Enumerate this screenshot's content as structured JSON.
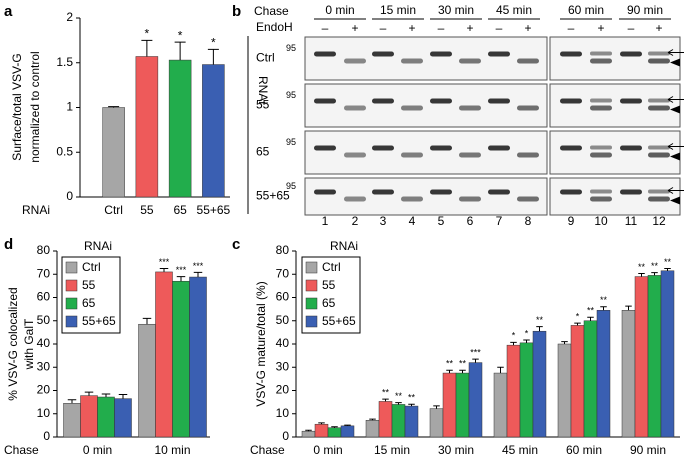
{
  "chart_data": [
    {
      "type": "bar",
      "label": "a",
      "y_label": [
        "Surface/total VSV-G",
        "normalized to control"
      ],
      "category_label": "RNAi",
      "categories": [
        "Ctrl",
        "55",
        "65",
        "55+65"
      ],
      "values": [
        1,
        1.57,
        1.53,
        1.48
      ],
      "errors": [
        0.01,
        0.18,
        0.2,
        0.17
      ],
      "significance": [
        null,
        "*",
        "*",
        "*"
      ],
      "colors": [
        "#a6a6a6",
        "#ee5a5a",
        "#22ad4c",
        "#3a5fb2"
      ],
      "ylim": [
        0,
        2
      ],
      "yticks": [
        0,
        0.5,
        1,
        1.5,
        2
      ]
    },
    {
      "type": "bar",
      "label": "c",
      "y_label": [
        "VSV-G mature/total (%)"
      ],
      "category_label": "Chase",
      "categories": [
        "0 min",
        "15 min",
        "30 min",
        "45 min",
        "60 min",
        "90 min"
      ],
      "legend_title": "RNAi",
      "legend": "upper left",
      "series": [
        {
          "name": "Ctrl",
          "color": "#a6a6a6",
          "values": [
            2.5,
            7.2,
            12.2,
            27.5,
            40,
            54.5
          ],
          "errors": [
            0.4,
            0.5,
            1.2,
            2.5,
            1,
            1.8
          ],
          "significance": [
            null,
            null,
            null,
            null,
            null,
            null
          ]
        },
        {
          "name": "55",
          "color": "#ee5a5a",
          "values": [
            5.5,
            15.3,
            27.5,
            39.5,
            48,
            69
          ],
          "errors": [
            0.6,
            1,
            1.2,
            1.2,
            1,
            1.3
          ],
          "significance": [
            null,
            "**",
            "**",
            "*",
            "*",
            "**"
          ]
        },
        {
          "name": "65",
          "color": "#22ad4c",
          "values": [
            4,
            14,
            27.5,
            40.5,
            50,
            69.5
          ],
          "errors": [
            0.4,
            0.8,
            1.2,
            1.2,
            1.5,
            1.2
          ],
          "significance": [
            null,
            "**",
            "**",
            "*",
            "**",
            "**"
          ]
        },
        {
          "name": "55+65",
          "color": "#3a5fb2",
          "values": [
            4.8,
            13.3,
            32,
            45.5,
            54.5,
            71.5
          ],
          "errors": [
            0.3,
            0.8,
            1.5,
            2,
            1.5,
            1
          ],
          "significance": [
            null,
            "**",
            "***",
            "**",
            "**",
            "**"
          ]
        }
      ],
      "ylim": [
        0,
        80
      ],
      "yticks": [
        0,
        10,
        20,
        30,
        40,
        50,
        60,
        70,
        80
      ]
    },
    {
      "type": "bar",
      "label": "d",
      "y_label": [
        "% VSV-G colocalized",
        "with GalT"
      ],
      "category_label": "Chase",
      "categories": [
        "0 min",
        "10 min"
      ],
      "legend_title": "RNAi",
      "legend": "upper left",
      "series": [
        {
          "name": "Ctrl",
          "color": "#a6a6a6",
          "values": [
            14.5,
            48.5
          ],
          "errors": [
            1.5,
            2.5
          ],
          "significance": [
            null,
            null
          ]
        },
        {
          "name": "55",
          "color": "#ee5a5a",
          "values": [
            17.8,
            71
          ],
          "errors": [
            1.5,
            1.5
          ],
          "significance": [
            null,
            "***"
          ]
        },
        {
          "name": "65",
          "color": "#22ad4c",
          "values": [
            17.2,
            67
          ],
          "errors": [
            1.3,
            2
          ],
          "significance": [
            null,
            "***"
          ]
        },
        {
          "name": "55+65",
          "color": "#3a5fb2",
          "values": [
            16.5,
            68.8
          ],
          "errors": [
            1.8,
            2
          ],
          "significance": [
            null,
            "***"
          ]
        }
      ],
      "ylim": [
        0,
        80
      ],
      "yticks": [
        0,
        10,
        20,
        30,
        40,
        50,
        60,
        70,
        80
      ]
    }
  ],
  "blot": {
    "label": "b",
    "chase_label": "Chase",
    "timepoints": [
      "0 min",
      "15 min",
      "30 min",
      "45 min",
      "60 min",
      "90 min"
    ],
    "endoh_label": "EndoH",
    "endoh": [
      "–",
      "+",
      "–",
      "+",
      "–",
      "+",
      "–",
      "+",
      "–",
      "+",
      "–",
      "+"
    ],
    "rnai_label": "RNAi",
    "rows": [
      "Ctrl",
      "55",
      "65",
      "55+65"
    ],
    "marker": "95",
    "lanes": [
      "1",
      "2",
      "3",
      "4",
      "5",
      "6",
      "7",
      "8",
      "9",
      "10",
      "11",
      "12"
    ]
  }
}
